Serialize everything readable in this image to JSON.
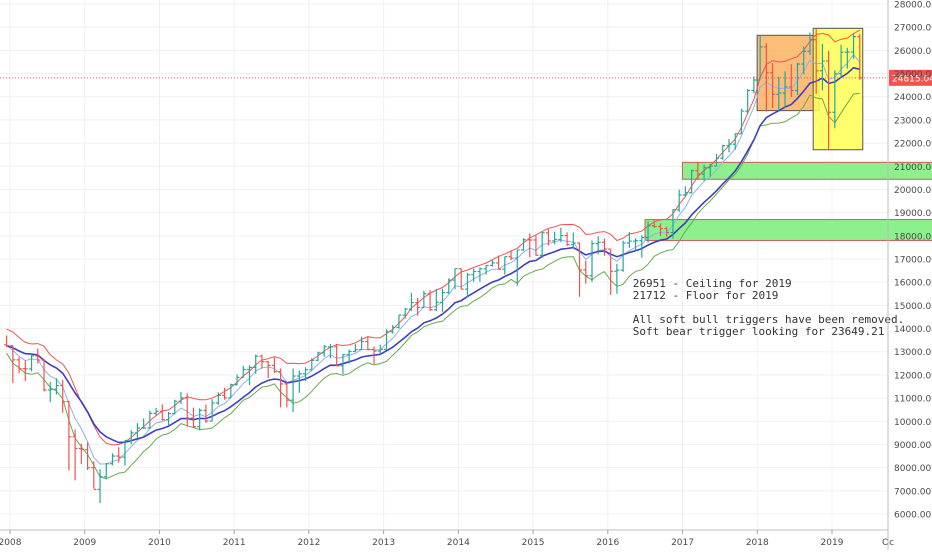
{
  "chart_data": {
    "type": "ohlc",
    "interval": "monthly",
    "x_range": [
      "2007-12-01",
      "2020-10-31"
    ],
    "ylim": [
      5500,
      28000
    ],
    "y_ticks": [
      6000,
      7000,
      8000,
      9000,
      10000,
      11000,
      12000,
      13000,
      14000,
      15000,
      16000,
      17000,
      18000,
      19000,
      20000,
      21000,
      22000,
      23000,
      24000,
      25000,
      26000,
      27000,
      28000
    ],
    "y_tick_labels": [
      "6000.00",
      "7000.00",
      "8000.00",
      "9000.00",
      "10000.00",
      "11000.00",
      "12000.00",
      "13000.00",
      "14000.00",
      "15000.00",
      "16000.00",
      "17000.00",
      "18000.00",
      "19000.00",
      "20000.00",
      "21000.00",
      "22000.00",
      "23000.00",
      "24000.00",
      "25000.00",
      "26000.00",
      "27000.00",
      "28000.00"
    ],
    "x_ticks": [
      {
        "label": "2008",
        "date": "2008-01-01"
      },
      {
        "label": "2009",
        "date": "2009-01-01"
      },
      {
        "label": "2010",
        "date": "2010-01-01"
      },
      {
        "label": "2011",
        "date": "2011-01-01"
      },
      {
        "label": "2012",
        "date": "2012-01-01"
      },
      {
        "label": "2013",
        "date": "2013-01-01"
      },
      {
        "label": "2014",
        "date": "2014-01-01"
      },
      {
        "label": "2015",
        "date": "2015-01-01"
      },
      {
        "label": "2016",
        "date": "2016-01-01"
      },
      {
        "label": "2017",
        "date": "2017-01-01"
      },
      {
        "label": "2018",
        "date": "2018-01-01"
      },
      {
        "label": "2019",
        "date": "2019-01-01"
      },
      {
        "label": "Oc",
        "date": "2019-10-01"
      }
    ],
    "current_price": 24815.04,
    "current_price_label": "24815.04",
    "colors": {
      "up": "#26a69a",
      "down": "#ef5350",
      "ma_slow": "#3f3fbf",
      "ma_fast": "#8fb2e6",
      "band_upper": "#ef5350",
      "band_lower": "#6aa84f",
      "zone_green": "#7ff07f",
      "zone_orange": "#f9b163",
      "zone_yellow": "#ffff55",
      "price_line": "#ef5350"
    },
    "bars": [
      {
        "t": "2007-12",
        "o": 13300,
        "h": 13700,
        "l": 13200,
        "c": 13265
      },
      {
        "t": "2008-01",
        "o": 13260,
        "h": 13280,
        "l": 11650,
        "c": 12650
      },
      {
        "t": "2008-02",
        "o": 12650,
        "h": 12760,
        "l": 12070,
        "c": 12270
      },
      {
        "t": "2008-03",
        "o": 12270,
        "h": 12620,
        "l": 11730,
        "c": 12260
      },
      {
        "t": "2008-04",
        "o": 12260,
        "h": 12900,
        "l": 12150,
        "c": 12820
      },
      {
        "t": "2008-05",
        "o": 12820,
        "h": 13140,
        "l": 12490,
        "c": 12640
      },
      {
        "t": "2008-06",
        "o": 12640,
        "h": 12700,
        "l": 11290,
        "c": 11350
      },
      {
        "t": "2008-07",
        "o": 11350,
        "h": 11700,
        "l": 10830,
        "c": 11380
      },
      {
        "t": "2008-08",
        "o": 11380,
        "h": 11860,
        "l": 11150,
        "c": 11540
      },
      {
        "t": "2008-09",
        "o": 11540,
        "h": 11790,
        "l": 10370,
        "c": 10850
      },
      {
        "t": "2008-10",
        "o": 10850,
        "h": 10880,
        "l": 7880,
        "c": 9330
      },
      {
        "t": "2008-11",
        "o": 9330,
        "h": 9650,
        "l": 7450,
        "c": 8830
      },
      {
        "t": "2008-12",
        "o": 8830,
        "h": 9030,
        "l": 8150,
        "c": 8780
      },
      {
        "t": "2009-01",
        "o": 8780,
        "h": 9090,
        "l": 7900,
        "c": 8000
      },
      {
        "t": "2009-02",
        "o": 8000,
        "h": 8280,
        "l": 7090,
        "c": 7060
      },
      {
        "t": "2009-03",
        "o": 7060,
        "h": 7930,
        "l": 6470,
        "c": 7610
      },
      {
        "t": "2009-04",
        "o": 7610,
        "h": 8200,
        "l": 7490,
        "c": 8170
      },
      {
        "t": "2009-05",
        "o": 8170,
        "h": 8620,
        "l": 8100,
        "c": 8500
      },
      {
        "t": "2009-06",
        "o": 8500,
        "h": 8880,
        "l": 8220,
        "c": 8450
      },
      {
        "t": "2009-07",
        "o": 8450,
        "h": 9170,
        "l": 8090,
        "c": 9170
      },
      {
        "t": "2009-08",
        "o": 9170,
        "h": 9620,
        "l": 9010,
        "c": 9500
      },
      {
        "t": "2009-09",
        "o": 9500,
        "h": 9920,
        "l": 9250,
        "c": 9710
      },
      {
        "t": "2009-10",
        "o": 9710,
        "h": 10120,
        "l": 9670,
        "c": 9710
      },
      {
        "t": "2009-11",
        "o": 9710,
        "h": 10470,
        "l": 9680,
        "c": 10340
      },
      {
        "t": "2009-12",
        "o": 10340,
        "h": 10580,
        "l": 10230,
        "c": 10430
      },
      {
        "t": "2010-01",
        "o": 10430,
        "h": 10730,
        "l": 10030,
        "c": 10070
      },
      {
        "t": "2010-02",
        "o": 10070,
        "h": 10400,
        "l": 9840,
        "c": 10330
      },
      {
        "t": "2010-03",
        "o": 10330,
        "h": 10930,
        "l": 10300,
        "c": 10860
      },
      {
        "t": "2010-04",
        "o": 10860,
        "h": 11260,
        "l": 10740,
        "c": 11010
      },
      {
        "t": "2010-05",
        "o": 11010,
        "h": 11210,
        "l": 9770,
        "c": 10140
      },
      {
        "t": "2010-06",
        "o": 10140,
        "h": 10590,
        "l": 9730,
        "c": 9770
      },
      {
        "t": "2010-07",
        "o": 9770,
        "h": 10560,
        "l": 9610,
        "c": 10470
      },
      {
        "t": "2010-08",
        "o": 10470,
        "h": 10720,
        "l": 9930,
        "c": 10010
      },
      {
        "t": "2010-09",
        "o": 10010,
        "h": 10950,
        "l": 10000,
        "c": 10790
      },
      {
        "t": "2010-10",
        "o": 10790,
        "h": 11250,
        "l": 10700,
        "c": 11120
      },
      {
        "t": "2010-11",
        "o": 11120,
        "h": 11450,
        "l": 10930,
        "c": 11010
      },
      {
        "t": "2010-12",
        "o": 11010,
        "h": 11630,
        "l": 11000,
        "c": 11580
      },
      {
        "t": "2011-01",
        "o": 11580,
        "h": 12020,
        "l": 11550,
        "c": 11890
      },
      {
        "t": "2011-02",
        "o": 11890,
        "h": 12390,
        "l": 11880,
        "c": 12230
      },
      {
        "t": "2011-03",
        "o": 12230,
        "h": 12420,
        "l": 11560,
        "c": 12320
      },
      {
        "t": "2011-04",
        "o": 12320,
        "h": 12880,
        "l": 12050,
        "c": 12810
      },
      {
        "t": "2011-05",
        "o": 12810,
        "h": 12880,
        "l": 12270,
        "c": 12570
      },
      {
        "t": "2011-06",
        "o": 12570,
        "h": 12600,
        "l": 11860,
        "c": 12410
      },
      {
        "t": "2011-07",
        "o": 12410,
        "h": 12750,
        "l": 12090,
        "c": 12140
      },
      {
        "t": "2011-08",
        "o": 12140,
        "h": 12280,
        "l": 10600,
        "c": 11610
      },
      {
        "t": "2011-09",
        "o": 11610,
        "h": 11720,
        "l": 10600,
        "c": 10910
      },
      {
        "t": "2011-10",
        "o": 10910,
        "h": 12280,
        "l": 10400,
        "c": 11950
      },
      {
        "t": "2011-11",
        "o": 11950,
        "h": 12190,
        "l": 11230,
        "c": 12050
      },
      {
        "t": "2011-12",
        "o": 12050,
        "h": 12330,
        "l": 11730,
        "c": 12220
      },
      {
        "t": "2012-01",
        "o": 12220,
        "h": 12720,
        "l": 12200,
        "c": 12630
      },
      {
        "t": "2012-02",
        "o": 12630,
        "h": 13000,
        "l": 12600,
        "c": 12950
      },
      {
        "t": "2012-03",
        "o": 12950,
        "h": 13290,
        "l": 12780,
        "c": 13210
      },
      {
        "t": "2012-04",
        "o": 13210,
        "h": 13340,
        "l": 12710,
        "c": 13210
      },
      {
        "t": "2012-05",
        "o": 13210,
        "h": 13340,
        "l": 12390,
        "c": 12390
      },
      {
        "t": "2012-06",
        "o": 12390,
        "h": 12900,
        "l": 12030,
        "c": 12880
      },
      {
        "t": "2012-07",
        "o": 12880,
        "h": 13100,
        "l": 12490,
        "c": 13010
      },
      {
        "t": "2012-08",
        "o": 13010,
        "h": 13330,
        "l": 12980,
        "c": 13090
      },
      {
        "t": "2012-09",
        "o": 13090,
        "h": 13650,
        "l": 13080,
        "c": 13440
      },
      {
        "t": "2012-10",
        "o": 13440,
        "h": 13660,
        "l": 13060,
        "c": 13100
      },
      {
        "t": "2012-11",
        "o": 13100,
        "h": 13230,
        "l": 12470,
        "c": 13030
      },
      {
        "t": "2012-12",
        "o": 13030,
        "h": 13310,
        "l": 12880,
        "c": 13100
      },
      {
        "t": "2013-01",
        "o": 13100,
        "h": 13970,
        "l": 13100,
        "c": 13860
      },
      {
        "t": "2013-02",
        "o": 13860,
        "h": 14150,
        "l": 13780,
        "c": 14050
      },
      {
        "t": "2013-03",
        "o": 14050,
        "h": 14590,
        "l": 14000,
        "c": 14580
      },
      {
        "t": "2013-04",
        "o": 14580,
        "h": 14890,
        "l": 14430,
        "c": 14840
      },
      {
        "t": "2013-05",
        "o": 14840,
        "h": 15540,
        "l": 14760,
        "c": 15120
      },
      {
        "t": "2013-06",
        "o": 15120,
        "h": 15320,
        "l": 14550,
        "c": 14910
      },
      {
        "t": "2013-07",
        "o": 14910,
        "h": 15630,
        "l": 14900,
        "c": 15500
      },
      {
        "t": "2013-08",
        "o": 15500,
        "h": 15660,
        "l": 14760,
        "c": 14810
      },
      {
        "t": "2013-09",
        "o": 14810,
        "h": 15710,
        "l": 14760,
        "c": 15130
      },
      {
        "t": "2013-10",
        "o": 15130,
        "h": 15720,
        "l": 14720,
        "c": 15550
      },
      {
        "t": "2013-11",
        "o": 15550,
        "h": 16170,
        "l": 15500,
        "c": 16090
      },
      {
        "t": "2013-12",
        "o": 16090,
        "h": 16590,
        "l": 15700,
        "c": 16580
      },
      {
        "t": "2014-01",
        "o": 16580,
        "h": 16590,
        "l": 15700,
        "c": 15700
      },
      {
        "t": "2014-02",
        "o": 15700,
        "h": 16400,
        "l": 15340,
        "c": 16320
      },
      {
        "t": "2014-03",
        "o": 16320,
        "h": 16590,
        "l": 16020,
        "c": 16460
      },
      {
        "t": "2014-04",
        "o": 16460,
        "h": 16630,
        "l": 16020,
        "c": 16580
      },
      {
        "t": "2014-05",
        "o": 16580,
        "h": 16740,
        "l": 16330,
        "c": 16720
      },
      {
        "t": "2014-06",
        "o": 16720,
        "h": 16980,
        "l": 16670,
        "c": 16830
      },
      {
        "t": "2014-07",
        "o": 16830,
        "h": 17150,
        "l": 16560,
        "c": 16560
      },
      {
        "t": "2014-08",
        "o": 16560,
        "h": 17100,
        "l": 16330,
        "c": 17100
      },
      {
        "t": "2014-09",
        "o": 17100,
        "h": 17350,
        "l": 16950,
        "c": 17040
      },
      {
        "t": "2014-10",
        "o": 17040,
        "h": 17400,
        "l": 15850,
        "c": 17390
      },
      {
        "t": "2014-11",
        "o": 17390,
        "h": 17900,
        "l": 17350,
        "c": 17830
      },
      {
        "t": "2014-12",
        "o": 17830,
        "h": 18100,
        "l": 17070,
        "c": 17820
      },
      {
        "t": "2015-01",
        "o": 17820,
        "h": 18000,
        "l": 17140,
        "c": 17160
      },
      {
        "t": "2015-02",
        "o": 17160,
        "h": 18200,
        "l": 17040,
        "c": 18130
      },
      {
        "t": "2015-03",
        "o": 18130,
        "h": 18290,
        "l": 17580,
        "c": 17780
      },
      {
        "t": "2015-04",
        "o": 17780,
        "h": 18180,
        "l": 17630,
        "c": 17840
      },
      {
        "t": "2015-05",
        "o": 17840,
        "h": 18350,
        "l": 17730,
        "c": 18010
      },
      {
        "t": "2015-06",
        "o": 18010,
        "h": 18150,
        "l": 17570,
        "c": 17620
      },
      {
        "t": "2015-07",
        "o": 17620,
        "h": 18140,
        "l": 17460,
        "c": 17690
      },
      {
        "t": "2015-08",
        "o": 17690,
        "h": 17710,
        "l": 15370,
        "c": 16530
      },
      {
        "t": "2015-09",
        "o": 16530,
        "h": 16930,
        "l": 15940,
        "c": 16280
      },
      {
        "t": "2015-10",
        "o": 16280,
        "h": 17800,
        "l": 16010,
        "c": 17660
      },
      {
        "t": "2015-11",
        "o": 17660,
        "h": 17980,
        "l": 17200,
        "c": 17720
      },
      {
        "t": "2015-12",
        "o": 17720,
        "h": 17890,
        "l": 17140,
        "c": 17430
      },
      {
        "t": "2016-01",
        "o": 17430,
        "h": 17430,
        "l": 15450,
        "c": 16470
      },
      {
        "t": "2016-02",
        "o": 16470,
        "h": 16790,
        "l": 15500,
        "c": 16520
      },
      {
        "t": "2016-03",
        "o": 16520,
        "h": 17790,
        "l": 16450,
        "c": 17690
      },
      {
        "t": "2016-04",
        "o": 17690,
        "h": 18170,
        "l": 17480,
        "c": 17770
      },
      {
        "t": "2016-05",
        "o": 17770,
        "h": 17900,
        "l": 17330,
        "c": 17790
      },
      {
        "t": "2016-06",
        "o": 17790,
        "h": 18020,
        "l": 17060,
        "c": 17930
      },
      {
        "t": "2016-07",
        "o": 17930,
        "h": 18620,
        "l": 17710,
        "c": 18430
      },
      {
        "t": "2016-08",
        "o": 18430,
        "h": 18670,
        "l": 18350,
        "c": 18400
      },
      {
        "t": "2016-09",
        "o": 18400,
        "h": 18540,
        "l": 17990,
        "c": 18310
      },
      {
        "t": "2016-10",
        "o": 18310,
        "h": 18400,
        "l": 17960,
        "c": 18140
      },
      {
        "t": "2016-11",
        "o": 18140,
        "h": 19150,
        "l": 17880,
        "c": 19120
      },
      {
        "t": "2016-12",
        "o": 19120,
        "h": 19990,
        "l": 19030,
        "c": 19760
      },
      {
        "t": "2017-01",
        "o": 19760,
        "h": 20130,
        "l": 19680,
        "c": 19860
      },
      {
        "t": "2017-02",
        "o": 19860,
        "h": 20850,
        "l": 19830,
        "c": 20810
      },
      {
        "t": "2017-03",
        "o": 20810,
        "h": 21170,
        "l": 20410,
        "c": 20660
      },
      {
        "t": "2017-04",
        "o": 20660,
        "h": 21070,
        "l": 20380,
        "c": 20940
      },
      {
        "t": "2017-05",
        "o": 20940,
        "h": 21110,
        "l": 20550,
        "c": 21010
      },
      {
        "t": "2017-06",
        "o": 21010,
        "h": 21530,
        "l": 20990,
        "c": 21350
      },
      {
        "t": "2017-07",
        "o": 21350,
        "h": 21930,
        "l": 21280,
        "c": 21890
      },
      {
        "t": "2017-08",
        "o": 21890,
        "h": 22180,
        "l": 21600,
        "c": 21950
      },
      {
        "t": "2017-09",
        "o": 21950,
        "h": 22420,
        "l": 21710,
        "c": 22400
      },
      {
        "t": "2017-10",
        "o": 22400,
        "h": 23480,
        "l": 22400,
        "c": 23380
      },
      {
        "t": "2017-11",
        "o": 23380,
        "h": 24330,
        "l": 23250,
        "c": 24270
      },
      {
        "t": "2017-12",
        "o": 24270,
        "h": 24880,
        "l": 24140,
        "c": 24720
      },
      {
        "t": "2018-01",
        "o": 24720,
        "h": 26620,
        "l": 24740,
        "c": 26150
      },
      {
        "t": "2018-02",
        "o": 26150,
        "h": 26310,
        "l": 23360,
        "c": 25030
      },
      {
        "t": "2018-03",
        "o": 25030,
        "h": 25450,
        "l": 23510,
        "c": 24100
      },
      {
        "t": "2018-04",
        "o": 24100,
        "h": 24860,
        "l": 23340,
        "c": 24160
      },
      {
        "t": "2018-05",
        "o": 24160,
        "h": 25090,
        "l": 23530,
        "c": 24420
      },
      {
        "t": "2018-06",
        "o": 24420,
        "h": 25400,
        "l": 23990,
        "c": 24270
      },
      {
        "t": "2018-07",
        "o": 24270,
        "h": 25460,
        "l": 24080,
        "c": 25410
      },
      {
        "t": "2018-08",
        "o": 25410,
        "h": 26170,
        "l": 24970,
        "c": 25960
      },
      {
        "t": "2018-09",
        "o": 25960,
        "h": 26770,
        "l": 25800,
        "c": 26460
      },
      {
        "t": "2018-10",
        "o": 26460,
        "h": 26950,
        "l": 24120,
        "c": 25120
      },
      {
        "t": "2018-11",
        "o": 25120,
        "h": 26280,
        "l": 24270,
        "c": 25540
      },
      {
        "t": "2018-12",
        "o": 25540,
        "h": 25980,
        "l": 21710,
        "c": 23330
      },
      {
        "t": "2019-01",
        "o": 23330,
        "h": 25130,
        "l": 22640,
        "c": 24990
      },
      {
        "t": "2019-02",
        "o": 24990,
        "h": 26240,
        "l": 24880,
        "c": 25920
      },
      {
        "t": "2019-03",
        "o": 25920,
        "h": 26110,
        "l": 25210,
        "c": 25930
      },
      {
        "t": "2019-04",
        "o": 25930,
        "h": 26700,
        "l": 25640,
        "c": 26590
      },
      {
        "t": "2019-05",
        "o": 26590,
        "h": 26700,
        "l": 24730,
        "c": 24815
      }
    ],
    "zones": [
      {
        "kind": "green",
        "t0": "2017-01",
        "t1": "2020-07",
        "y0": 20440,
        "y1": 21170
      },
      {
        "kind": "green",
        "t0": "2016-07",
        "t1": "2020-07",
        "y0": 17800,
        "y1": 18700
      },
      {
        "kind": "orange",
        "t0": "2018-01",
        "t1": "2018-10",
        "y0": 23400,
        "y1": 26650
      },
      {
        "kind": "yellow",
        "t0": "2018-10",
        "t1": "2019-05",
        "y0": 21712,
        "y1": 26951
      }
    ],
    "annotations": [
      "26951 - Ceiling for 2019",
      "21712 - Floor for 2019",
      "",
      "All soft bull triggers have been removed.",
      "Soft bear trigger looking for 23649.21"
    ]
  }
}
